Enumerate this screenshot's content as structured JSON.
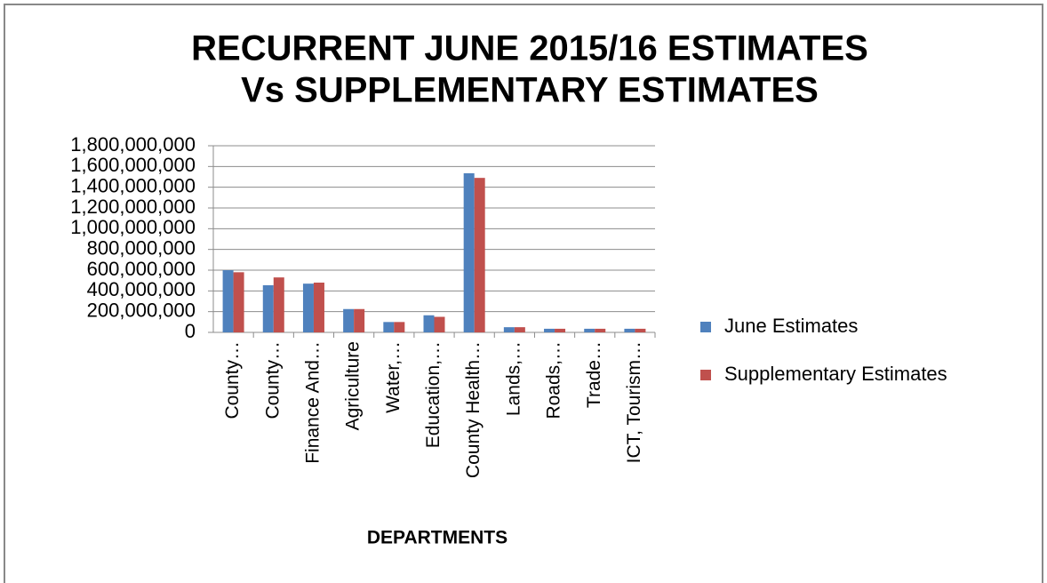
{
  "chart_data": {
    "type": "bar",
    "title": [
      "RECURRENT JUNE 2015/16 ESTIMATES",
      "Vs SUPPLEMENTARY ESTIMATES"
    ],
    "x_label": "DEPARTMENTS",
    "categories": [
      "County…",
      "County…",
      "Finance And…",
      "Agriculture",
      "Water,…",
      "Education,…",
      "County Health…",
      "Lands,…",
      "Roads,…",
      "Trade…",
      "ICT, Tourism…"
    ],
    "series": [
      {
        "name": "June Estimates",
        "color": "#4f81bd",
        "values": [
          600000000,
          455000000,
          470000000,
          225000000,
          100000000,
          165000000,
          1535000000,
          50000000,
          35000000,
          35000000,
          35000000
        ]
      },
      {
        "name": "Supplementary Estimates",
        "color": "#c0504d",
        "values": [
          580000000,
          530000000,
          480000000,
          225000000,
          100000000,
          150000000,
          1490000000,
          50000000,
          35000000,
          35000000,
          35000000
        ]
      }
    ],
    "ylim": [
      0,
      1800000000
    ],
    "yticks": [
      0,
      {
        "value": 200000000,
        "label": "200,000,000"
      },
      {
        "value": 400000000,
        "label": "400,000,000"
      },
      {
        "value": 600000000,
        "label": "600,000,000"
      },
      {
        "value": 800000000,
        "label": "800,000,000"
      },
      {
        "value": 1000000000,
        "label": "1,000,000,000"
      },
      {
        "value": 1200000000,
        "label": "1,200,000,000"
      },
      {
        "value": 1400000000,
        "label": "1,400,000,000"
      },
      {
        "value": 1600000000,
        "label": "1,600,000,000"
      },
      {
        "value": 1800000000,
        "label": "1,800,000,000"
      }
    ],
    "grid": true,
    "legend": "right"
  }
}
